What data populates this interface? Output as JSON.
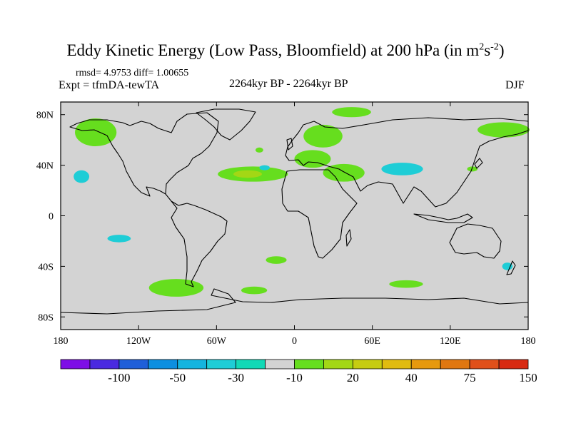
{
  "title": {
    "main": "Eddy Kinetic Energy (Low Pass, Bloomfield) at 200 hPa (in m",
    "exp1": "2",
    "mid": "s",
    "exp2": "-2",
    "tail": ")"
  },
  "stats": "rmsd= 4.9753 diff= 1.00655",
  "experiment": "Expt = tfmDA-tewTA",
  "period": "2264kyr BP - 2264kyr BP",
  "season": "DJF",
  "chart_data": {
    "type": "heatmap",
    "map_projection": "cylindrical equidistant, global",
    "x_axis": {
      "range": [
        -180,
        180
      ],
      "ticks": [
        {
          "value": -180,
          "label": "180"
        },
        {
          "value": -120,
          "label": "120W"
        },
        {
          "value": -60,
          "label": "60W"
        },
        {
          "value": 0,
          "label": "0"
        },
        {
          "value": 60,
          "label": "60E"
        },
        {
          "value": 120,
          "label": "120E"
        },
        {
          "value": 180,
          "label": "180"
        }
      ]
    },
    "y_axis": {
      "range": [
        -90,
        90
      ],
      "ticks": [
        {
          "value": 80,
          "label": "80N"
        },
        {
          "value": 40,
          "label": "40N"
        },
        {
          "value": 0,
          "label": "0"
        },
        {
          "value": -40,
          "label": "40S"
        },
        {
          "value": -80,
          "label": "80S"
        }
      ]
    },
    "background_color": "#d3d3d3",
    "colorbar": {
      "colors": [
        "#7e0ee6",
        "#4a2ae0",
        "#1f5fd9",
        "#0d8fe0",
        "#14b4df",
        "#1ecdd6",
        "#12d9b6",
        "#d3d3d3",
        "#66de1e",
        "#a3d715",
        "#c6cc12",
        "#e0bb10",
        "#e6990e",
        "#e07710",
        "#e0501a",
        "#d82a12"
      ],
      "labels": [
        {
          "after_box": 2,
          "text": "-100"
        },
        {
          "after_box": 4,
          "text": "-50"
        },
        {
          "after_box": 6,
          "text": "-30"
        },
        {
          "after_box": 8,
          "text": "-10"
        },
        {
          "after_box": 10,
          "text": "20"
        },
        {
          "after_box": 12,
          "text": "40"
        },
        {
          "after_box": 14,
          "text": "75"
        },
        {
          "after_box": 16,
          "text": "150"
        }
      ]
    },
    "anomaly_regions": [
      {
        "name": "north-pacific-west",
        "lon": -153,
        "lat": 66,
        "lon_extent": 16,
        "lat_extent": 11,
        "color": "#66de1e"
      },
      {
        "name": "north-atlantic",
        "lon": -32,
        "lat": 33,
        "lon_extent": 27,
        "lat_extent": 6,
        "color": "#66de1e"
      },
      {
        "name": "north-atlantic-core",
        "lon": -36,
        "lat": 33,
        "lon_extent": 11,
        "lat_extent": 3,
        "color": "#a3d715"
      },
      {
        "name": "europe",
        "lon": 14,
        "lat": 45,
        "lon_extent": 14,
        "lat_extent": 7,
        "color": "#66de1e"
      },
      {
        "name": "middle-east",
        "lon": 38,
        "lat": 34,
        "lon_extent": 16,
        "lat_extent": 7,
        "color": "#66de1e"
      },
      {
        "name": "scandinavia",
        "lon": 22,
        "lat": 63,
        "lon_extent": 15,
        "lat_extent": 9,
        "color": "#66de1e"
      },
      {
        "name": "arctic",
        "lon": 44,
        "lat": 82,
        "lon_extent": 15,
        "lat_extent": 4,
        "color": "#66de1e"
      },
      {
        "name": "siberia-east",
        "lon": 161,
        "lat": 68,
        "lon_extent": 20,
        "lat_extent": 6,
        "color": "#66de1e"
      },
      {
        "name": "south-pacific",
        "lon": -91,
        "lat": -57,
        "lon_extent": 21,
        "lat_extent": 7,
        "color": "#66de1e"
      },
      {
        "name": "south-atlantic",
        "lon": -14,
        "lat": -35,
        "lon_extent": 8,
        "lat_extent": 3,
        "color": "#66de1e"
      },
      {
        "name": "south-atlantic-high-lat",
        "lon": -31,
        "lat": -59,
        "lon_extent": 10,
        "lat_extent": 3,
        "color": "#66de1e"
      },
      {
        "name": "southern-indian",
        "lon": 86,
        "lat": -54,
        "lon_extent": 13,
        "lat_extent": 3,
        "color": "#66de1e"
      },
      {
        "name": "central-asia",
        "lon": 83,
        "lat": 37,
        "lon_extent": 16,
        "lat_extent": 5,
        "color": "#1ecdd6"
      },
      {
        "name": "north-pacific-east",
        "lon": -164,
        "lat": 31,
        "lon_extent": 6,
        "lat_extent": 5,
        "color": "#1ecdd6"
      },
      {
        "name": "south-pacific-central",
        "lon": -135,
        "lat": -18,
        "lon_extent": 9,
        "lat_extent": 3,
        "color": "#1ecdd6"
      },
      {
        "name": "north-atlantic-small",
        "lon": -23,
        "lat": 38,
        "lon_extent": 4,
        "lat_extent": 2,
        "color": "#1ecdd6"
      },
      {
        "name": "new-zealand-sea",
        "lon": 164,
        "lat": -40,
        "lon_extent": 4,
        "lat_extent": 3,
        "color": "#1ecdd6"
      },
      {
        "name": "atlantic-small",
        "lon": -27,
        "lat": 52,
        "lon_extent": 3,
        "lat_extent": 2,
        "color": "#66de1e"
      },
      {
        "name": "asia-small",
        "lon": 137,
        "lat": 37,
        "lon_extent": 4,
        "lat_extent": 2,
        "color": "#66de1e"
      }
    ]
  }
}
